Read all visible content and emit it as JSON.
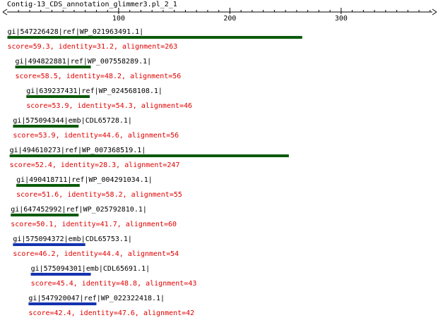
{
  "title": "Contig-13_CDS_annotation_glimmer3.pl_2_1",
  "axis": {
    "xlim": [
      0,
      382
    ],
    "xticks": [
      100,
      200,
      300
    ],
    "minor_ticks": [
      10,
      20,
      30,
      40,
      50,
      60,
      70,
      80,
      90,
      110,
      120,
      130,
      140,
      150,
      160,
      170,
      180,
      190,
      210,
      220,
      230,
      240,
      250,
      260,
      270,
      280,
      290,
      310,
      320,
      330,
      340,
      350,
      360,
      370,
      380
    ]
  },
  "hits": [
    {
      "label": "gi|547226428|ref|WP_021963491.1|",
      "stats": "score=59.3, identity=31.2, alignment=263",
      "start": 0,
      "end": 265,
      "color": "#0b5a0b"
    },
    {
      "label": "gi|494822881|ref|WP_007558289.1|",
      "stats": "score=58.5, identity=48.2, alignment=56",
      "start": 7,
      "end": 75,
      "color": "#0b5a0b"
    },
    {
      "label": "gi|639237431|ref|WP_024568108.1|",
      "stats": "score=53.9, identity=54.3, alignment=46",
      "start": 17,
      "end": 74,
      "color": "#0b5a0b"
    },
    {
      "label": "gi|575094344|emb|CDL65728.1|",
      "stats": "score=53.9, identity=44.6, alignment=56",
      "start": 5,
      "end": 64,
      "color": "#0b5a0b"
    },
    {
      "label": "gi|494610273|ref|WP_007368519.1|",
      "stats": "score=52.4, identity=28.3, alignment=247",
      "start": 2,
      "end": 253,
      "color": "#0b5a0b"
    },
    {
      "label": "gi|490418711|ref|WP_004291034.1|",
      "stats": "score=51.6, identity=58.2, alignment=55",
      "start": 8,
      "end": 65,
      "color": "#0b5a0b"
    },
    {
      "label": "gi|647452992|ref|WP_025792810.1|",
      "stats": "score=50.1, identity=41.7, alignment=60",
      "start": 3,
      "end": 64,
      "color": "#0b5a0b"
    },
    {
      "label": "gi|575094372|emb|CDL65753.1|",
      "stats": "score=46.2, identity=44.4, alignment=54",
      "start": 5,
      "end": 70,
      "color": "#1533b0"
    },
    {
      "label": "gi|575094301|emb|CDL65691.1|",
      "stats": "score=45.4, identity=48.8, alignment=43",
      "start": 21,
      "end": 75,
      "color": "#1533b0"
    },
    {
      "label": "gi|547920047|ref|WP_022322418.1|",
      "stats": "score=42.4, identity=47.6, alignment=42",
      "start": 19,
      "end": 80,
      "color": "#1533b0"
    }
  ]
}
